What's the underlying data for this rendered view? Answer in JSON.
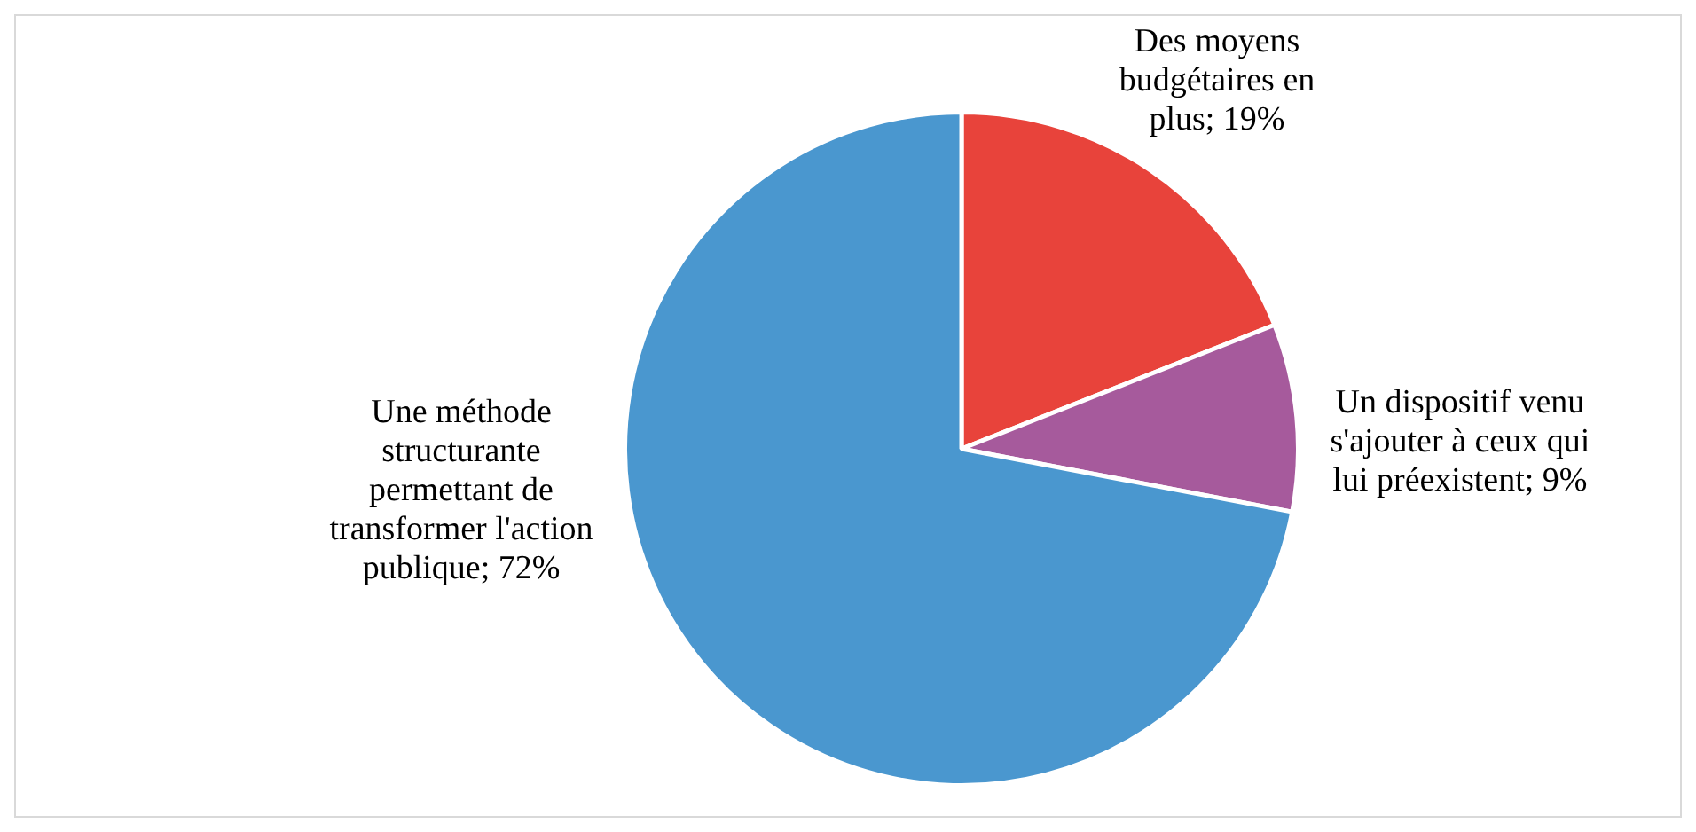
{
  "chart_data": {
    "type": "pie",
    "categories": [
      "Des moyens budgétaires en plus",
      "Un dispositif venu s'ajouter à ceux qui lui préexistent",
      "Une méthode structurante permettant de transformer l'action publique"
    ],
    "values": [
      19,
      9,
      72
    ],
    "colors": [
      "#e8433b",
      "#a65a9c",
      "#4a97cf"
    ],
    "data_labels": true,
    "value_labels": [
      "19%",
      "9%",
      "72%"
    ],
    "legend": false
  }
}
